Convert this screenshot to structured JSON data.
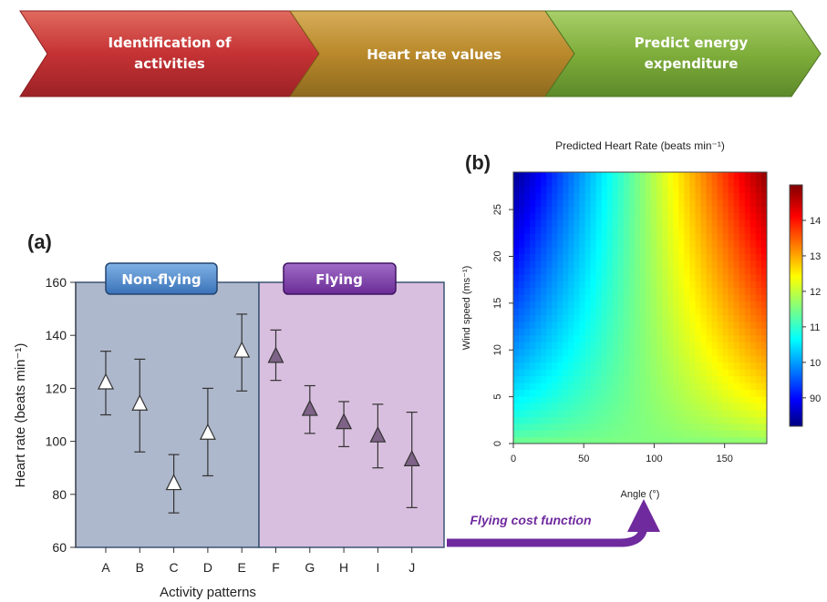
{
  "workflow": {
    "steps": [
      {
        "lines": [
          "Identification of",
          "activities"
        ],
        "color": "#c53234"
      },
      {
        "lines": [
          "Heart rate values"
        ],
        "color": "#b9892b"
      },
      {
        "lines": [
          "Predict energy",
          "expenditure"
        ],
        "color": "#7fae3b"
      }
    ]
  },
  "panel_a": {
    "panel_label": "(a)",
    "group_labels": {
      "non_flying": "Non-flying",
      "flying": "Flying"
    },
    "colors": {
      "non_flying_bg": "#aeb8cc",
      "flying_bg": "#d9bfdf",
      "non_flying_badge": "#4a86c8",
      "flying_badge": "#7b3aa6",
      "open_marker": "#ffffff",
      "filled_marker": "#7e6287"
    },
    "arrow_label": "Flying cost function",
    "arrow_color": "#6f2a9e"
  },
  "panel_b": {
    "panel_label": "(b)",
    "colorbar_ticks": [
      "90",
      "10",
      "11",
      "12",
      "13",
      "14"
    ]
  },
  "chart_data": [
    {
      "type": "scatter",
      "title": "",
      "xlabel": "Activity patterns",
      "ylabel": "Heart rate (beats min⁻¹)",
      "categories": [
        "A",
        "B",
        "C",
        "D",
        "E",
        "F",
        "G",
        "H",
        "I",
        "J"
      ],
      "ylim": [
        60,
        160
      ],
      "yticks": [
        60,
        80,
        100,
        120,
        140,
        160
      ],
      "series": [
        {
          "name": "Non-flying",
          "marker": "open-triangle",
          "categories": [
            "A",
            "B",
            "C",
            "D",
            "E"
          ],
          "values": [
            122,
            114,
            84,
            103,
            134
          ],
          "err_low": [
            110,
            96,
            73,
            87,
            119
          ],
          "err_high": [
            134,
            131,
            95,
            120,
            148
          ]
        },
        {
          "name": "Flying",
          "marker": "filled-triangle",
          "categories": [
            "F",
            "G",
            "H",
            "I",
            "J"
          ],
          "values": [
            132,
            112,
            107,
            102,
            93
          ],
          "err_low": [
            123,
            103,
            98,
            90,
            75
          ],
          "err_high": [
            142,
            121,
            115,
            114,
            111
          ]
        }
      ]
    },
    {
      "type": "heatmap",
      "title": "Predicted Heart Rate (beats min⁻¹)",
      "xlabel": "Angle (°)",
      "ylabel": "Wind speed (ms⁻¹)",
      "xlim": [
        0,
        180
      ],
      "ylim": [
        0,
        29
      ],
      "xticks": [
        0,
        50,
        100,
        150
      ],
      "yticks": [
        0,
        5,
        10,
        15,
        20,
        25
      ],
      "colorscale": "jet (blue = low, red = high)",
      "value_range": [
        82,
        150
      ]
    }
  ]
}
